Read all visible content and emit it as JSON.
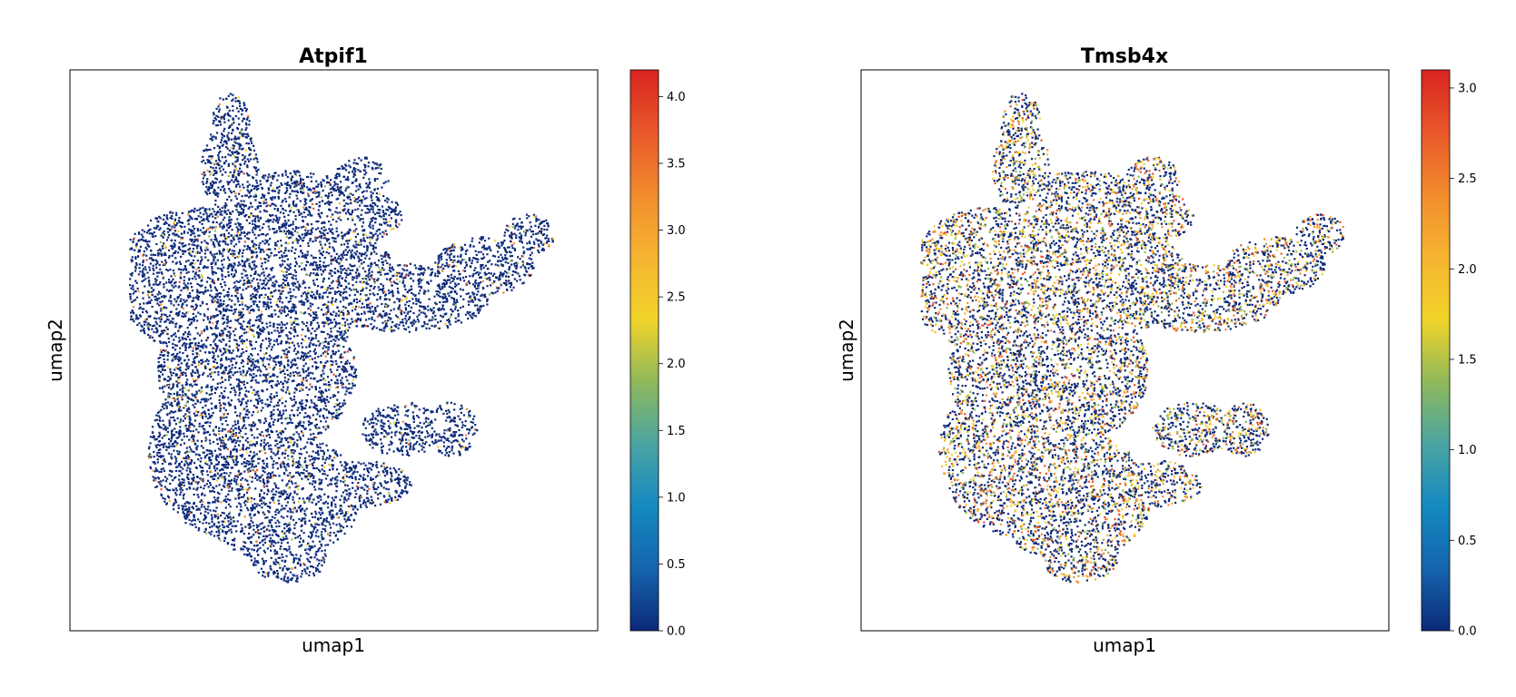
{
  "colorscale": [
    "#0d2a7a",
    "#1565ad",
    "#1589c0",
    "#4aa4a3",
    "#8fb95a",
    "#f2d42a",
    "#f5b431",
    "#f28c2e",
    "#e8582a",
    "#d8241f"
  ],
  "chart_data": [
    {
      "type": "scatter",
      "title": "Atpif1",
      "xlabel": "umap1",
      "ylabel": "umap2",
      "colorbar": {
        "min": 0,
        "max": 4.2,
        "ticks": [
          "0.0",
          "0.5",
          "1.0",
          "1.5",
          "2.0",
          "2.5",
          "3.0",
          "3.5",
          "4.0"
        ]
      },
      "expression_pattern": "mostly zero (dark blue) with sparse yellow-orange points, densest in the left lobe"
    },
    {
      "type": "scatter",
      "title": "Tmsb4x",
      "xlabel": "umap1",
      "ylabel": "umap2",
      "colorbar": {
        "min": 0,
        "max": 3.1,
        "ticks": [
          "0.0",
          "0.5",
          "1.0",
          "1.5",
          "2.0",
          "2.5",
          "3.0"
        ]
      },
      "expression_pattern": "broadly expressed, many orange points across the embedding"
    }
  ]
}
